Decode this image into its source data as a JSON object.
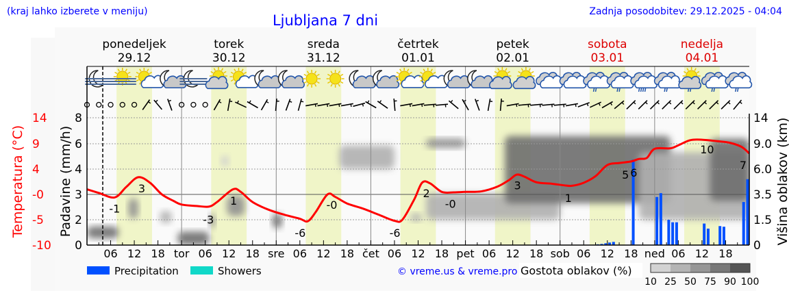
{
  "header": {
    "menu_hint": "(kraj lahko izberete v meniju)",
    "title": "Ljubljana 7 dni",
    "last_update": "Zadnja posodobitev: 29.12.2025 - 04:04"
  },
  "colors": {
    "link_blue": "#0000ff",
    "temp_red": "#ff0000",
    "weekend_red": "#dd0000",
    "daylight": "#f0f5c8",
    "precip": "#0050ff",
    "showers": "#10d8c8"
  },
  "days": [
    {
      "name": "ponedeljek",
      "date": "29.12",
      "short": "",
      "weekend": false
    },
    {
      "name": "torek",
      "date": "30.12",
      "short": "tor",
      "weekend": false
    },
    {
      "name": "sreda",
      "date": "31.12",
      "short": "sre",
      "weekend": false
    },
    {
      "name": "četrtek",
      "date": "01.01",
      "short": "čet",
      "weekend": false
    },
    {
      "name": "petek",
      "date": "02.01",
      "short": "pet",
      "weekend": false
    },
    {
      "name": "sobota",
      "date": "03.01",
      "short": "sob",
      "weekend": true
    },
    {
      "name": "nedelja",
      "date": "04.01",
      "short": "ned",
      "weekend": true
    }
  ],
  "weather_icons": [
    "fog-moon",
    "fog-sun",
    "sun-cloud",
    "moon-cloud",
    "fog-moon",
    "partly-cloudy",
    "sun-cloud",
    "moon-cloud",
    "moon-cloud",
    "sun",
    "sun",
    "moon-cloud",
    "moon-cloud",
    "sun-cloud",
    "sun-cloud",
    "moon-cloud",
    "moon-cloud",
    "partly-cloudy",
    "partly-cloudy",
    "overcast",
    "overcast",
    "overcast-light-rain",
    "overcast-light-rain",
    "overcast-rain",
    "overcast-light-rain",
    "partly-cloudy-light-rain",
    "overcast-light-rain",
    "overcast-light-rain"
  ],
  "wind_directions_deg": [
    null,
    null,
    null,
    null,
    null,
    35,
    -40,
    -20,
    null,
    null,
    null,
    30,
    10,
    -65,
    -60,
    30,
    5,
    20,
    15,
    80,
    80,
    80,
    80,
    75,
    -60,
    -55,
    -5,
    80,
    80,
    85,
    85,
    -50,
    -30,
    -20,
    10,
    5,
    80,
    85,
    85,
    85,
    85,
    80,
    70,
    65,
    60,
    50,
    45,
    45,
    45,
    45,
    45,
    45,
    45,
    45,
    45,
    40
  ],
  "chart_data": {
    "type": "line",
    "title": "Ljubljana 7 dni",
    "x_unit": "hour",
    "x_tick_labels": [
      "06",
      "12",
      "18",
      "tor",
      "06",
      "12",
      "18",
      "sre",
      "06",
      "12",
      "18",
      "čet",
      "06",
      "12",
      "18",
      "pet",
      "06",
      "12",
      "18",
      "sob",
      "06",
      "12",
      "18",
      "ned",
      "06",
      "12",
      "18"
    ],
    "current_time_hour": 4,
    "daylight_hours": [
      7.5,
      16.5
    ],
    "left_axis": {
      "label": "Padavine (mm/h)",
      "ticks": [
        "8",
        "6",
        "4",
        "3",
        "2",
        "0"
      ]
    },
    "temp_axis": {
      "label": "Temperatura (°C)",
      "ticks": [
        "14",
        "9",
        "4",
        "-0",
        "-5",
        "-10"
      ],
      "ylim": [
        -10,
        14
      ]
    },
    "right_axis": {
      "label": "Višina oblakov (km)",
      "ticks": [
        "14",
        "9.0",
        "6.0",
        "3.5",
        "1.5",
        "0"
      ]
    },
    "temperature": [
      [
        0,
        1.0
      ],
      [
        3,
        0.3
      ],
      [
        7,
        -0.6
      ],
      [
        10,
        1.5
      ],
      [
        13,
        3.4
      ],
      [
        16,
        2.3
      ],
      [
        19,
        0
      ],
      [
        22,
        -1.3
      ],
      [
        24,
        -2
      ],
      [
        28,
        -2.3
      ],
      [
        31,
        -2.4
      ],
      [
        33,
        -1.5
      ],
      [
        37,
        1.0
      ],
      [
        39,
        0.5
      ],
      [
        42,
        -1.5
      ],
      [
        46,
        -3
      ],
      [
        50,
        -4
      ],
      [
        54,
        -4.8
      ],
      [
        56,
        -5.3
      ],
      [
        58,
        -3.5
      ],
      [
        61,
        0
      ],
      [
        63,
        -0.5
      ],
      [
        66,
        -1.8
      ],
      [
        70,
        -2.8
      ],
      [
        74,
        -4
      ],
      [
        78,
        -5.2
      ],
      [
        80,
        -5
      ],
      [
        83,
        -1
      ],
      [
        85,
        2.3
      ],
      [
        87,
        2.2
      ],
      [
        90,
        0.5
      ],
      [
        93,
        0.4
      ],
      [
        96,
        0.5
      ],
      [
        100,
        0.6
      ],
      [
        104,
        1.5
      ],
      [
        107,
        2.8
      ],
      [
        109,
        3.9
      ],
      [
        111,
        3.5
      ],
      [
        114,
        2.4
      ],
      [
        118,
        2.1
      ],
      [
        121,
        1.8
      ],
      [
        123,
        1.7
      ],
      [
        126,
        2.3
      ],
      [
        129,
        3.6
      ],
      [
        132,
        5.8
      ],
      [
        135,
        6.2
      ],
      [
        138,
        6.5
      ],
      [
        140,
        7.0
      ],
      [
        142,
        7.2
      ],
      [
        144,
        9.0
      ],
      [
        148,
        9.1
      ],
      [
        150,
        9.7
      ],
      [
        153,
        10.7
      ],
      [
        156,
        10.8
      ],
      [
        160,
        10.5
      ],
      [
        163,
        10.2
      ],
      [
        166,
        9.4
      ],
      [
        168,
        8.1
      ]
    ],
    "temperature_labels": [
      {
        "hour": 7,
        "temp": -2.8,
        "text": "-1"
      },
      {
        "hour": 13.9,
        "temp": 1.2,
        "text": "3"
      },
      {
        "hour": 30.8,
        "temp": -4.9,
        "text": "-3"
      },
      {
        "hour": 37.2,
        "temp": -1.2,
        "text": "1"
      },
      {
        "hour": 54.1,
        "temp": -7.6,
        "text": "-6"
      },
      {
        "hour": 62.1,
        "temp": -2,
        "text": "-0"
      },
      {
        "hour": 78.1,
        "temp": -7.6,
        "text": "-6"
      },
      {
        "hour": 86.1,
        "temp": 0.3,
        "text": "2"
      },
      {
        "hour": 92.2,
        "temp": -1.8,
        "text": "-0"
      },
      {
        "hour": 109.2,
        "temp": 1.8,
        "text": "3"
      },
      {
        "hour": 122.1,
        "temp": -0.7,
        "text": "1"
      },
      {
        "hour": 137.2,
        "temp": 3.9,
        "text": "5"
      },
      {
        "hour": 138.1,
        "temp": 4.3,
        "text": "6"
      },
      {
        "hour": 157.3,
        "temp": 8.9,
        "text": "10"
      },
      {
        "hour": 168,
        "temp": 5.8,
        "text": "7"
      }
    ],
    "precipitation_mm_h": [
      [
        129,
        0.03
      ],
      [
        130,
        0.06
      ],
      [
        131,
        0.09
      ],
      [
        132,
        0.14
      ],
      [
        133,
        0.2
      ],
      [
        134,
        0.25
      ],
      [
        139,
        4.75
      ],
      [
        145,
        2.9
      ],
      [
        146,
        3.05
      ],
      [
        148,
        2.0
      ],
      [
        149,
        1.8
      ],
      [
        150,
        1.8
      ],
      [
        157,
        1.7
      ],
      [
        158,
        1.3
      ],
      [
        161,
        1.5
      ],
      [
        162,
        1.45
      ],
      [
        167,
        2.7
      ],
      [
        168,
        3.6
      ]
    ],
    "showers_mm_h": [],
    "cloud_density": [
      {
        "from_h": 0,
        "to_h": 8,
        "low_km": 0.4,
        "high_km": 1.1,
        "density": 75
      },
      {
        "from_h": 10.5,
        "to_h": 13,
        "low_km": 1.6,
        "high_km": 3.2,
        "density": 60
      },
      {
        "from_h": 18.5,
        "to_h": 21.5,
        "low_km": 1.3,
        "high_km": 2.2,
        "density": 40
      },
      {
        "from_h": 23,
        "to_h": 31,
        "low_km": 0,
        "high_km": 0.8,
        "density": 85
      },
      {
        "from_h": 31,
        "to_h": 32.5,
        "low_km": 1.0,
        "high_km": 2.0,
        "density": 70
      },
      {
        "from_h": 34,
        "to_h": 36,
        "low_km": 6.3,
        "high_km": 7.6,
        "density": 15
      },
      {
        "from_h": 35.5,
        "to_h": 40,
        "low_km": 1.8,
        "high_km": 3.4,
        "density": 50
      },
      {
        "from_h": 47,
        "to_h": 49.5,
        "low_km": 1.0,
        "high_km": 2.0,
        "density": 80
      },
      {
        "from_h": 64,
        "to_h": 78,
        "low_km": 6.0,
        "high_km": 8.8,
        "density": 30
      },
      {
        "from_h": 82,
        "to_h": 85,
        "low_km": 1.4,
        "high_km": 2.0,
        "density": 35
      },
      {
        "from_h": 86,
        "to_h": 96,
        "low_km": 8.5,
        "high_km": 10,
        "density": 55
      },
      {
        "from_h": 86,
        "to_h": 120,
        "low_km": 1.5,
        "high_km": 3.6,
        "density": 35
      },
      {
        "from_h": 106,
        "to_h": 148,
        "low_km": 2.8,
        "high_km": 10.5,
        "density": 85
      },
      {
        "from_h": 140,
        "to_h": 168,
        "low_km": 1.5,
        "high_km": 8.0,
        "density": 30
      },
      {
        "from_h": 158,
        "to_h": 168,
        "low_km": 3.0,
        "high_km": 10.0,
        "density": 80
      }
    ],
    "legend": [
      {
        "name": "Precipitation",
        "color": "#0050ff"
      },
      {
        "name": "Showers",
        "color": "#10d8c8"
      }
    ],
    "cloud_legend": {
      "title": "Gostota oblakov (%)",
      "levels": [
        "10",
        "25",
        "50",
        "75",
        "90",
        "100"
      ],
      "colors": [
        "#d2d2d2",
        "#b4b4b4",
        "#969696",
        "#787878",
        "#555555"
      ]
    },
    "credit": "© vreme.us & vreme.pro"
  }
}
